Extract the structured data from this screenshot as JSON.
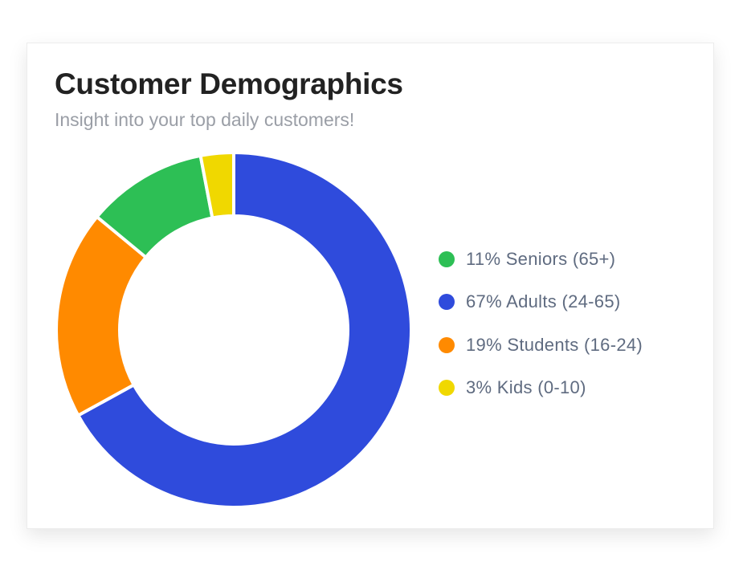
{
  "chart_data": {
    "type": "pie",
    "variant": "donut",
    "title": "Customer Demographics",
    "subtitle": "Insight into your top daily customers!",
    "legend_position": "right",
    "slices": [
      {
        "label": "11% Seniors (65+)",
        "name": "Seniors (65+)",
        "value": 11,
        "color": "#2dbf55"
      },
      {
        "label": "67% Adults (24-65)",
        "name": "Adults (24-65)",
        "value": 67,
        "color": "#2f4bdc"
      },
      {
        "label": "19% Students (16-24)",
        "name": "Students (16-24)",
        "value": 19,
        "color": "#ff8a00"
      },
      {
        "label": "3% Kids (0-10)",
        "name": "Kids (0-10)",
        "value": 3,
        "color": "#f0d800"
      }
    ]
  }
}
